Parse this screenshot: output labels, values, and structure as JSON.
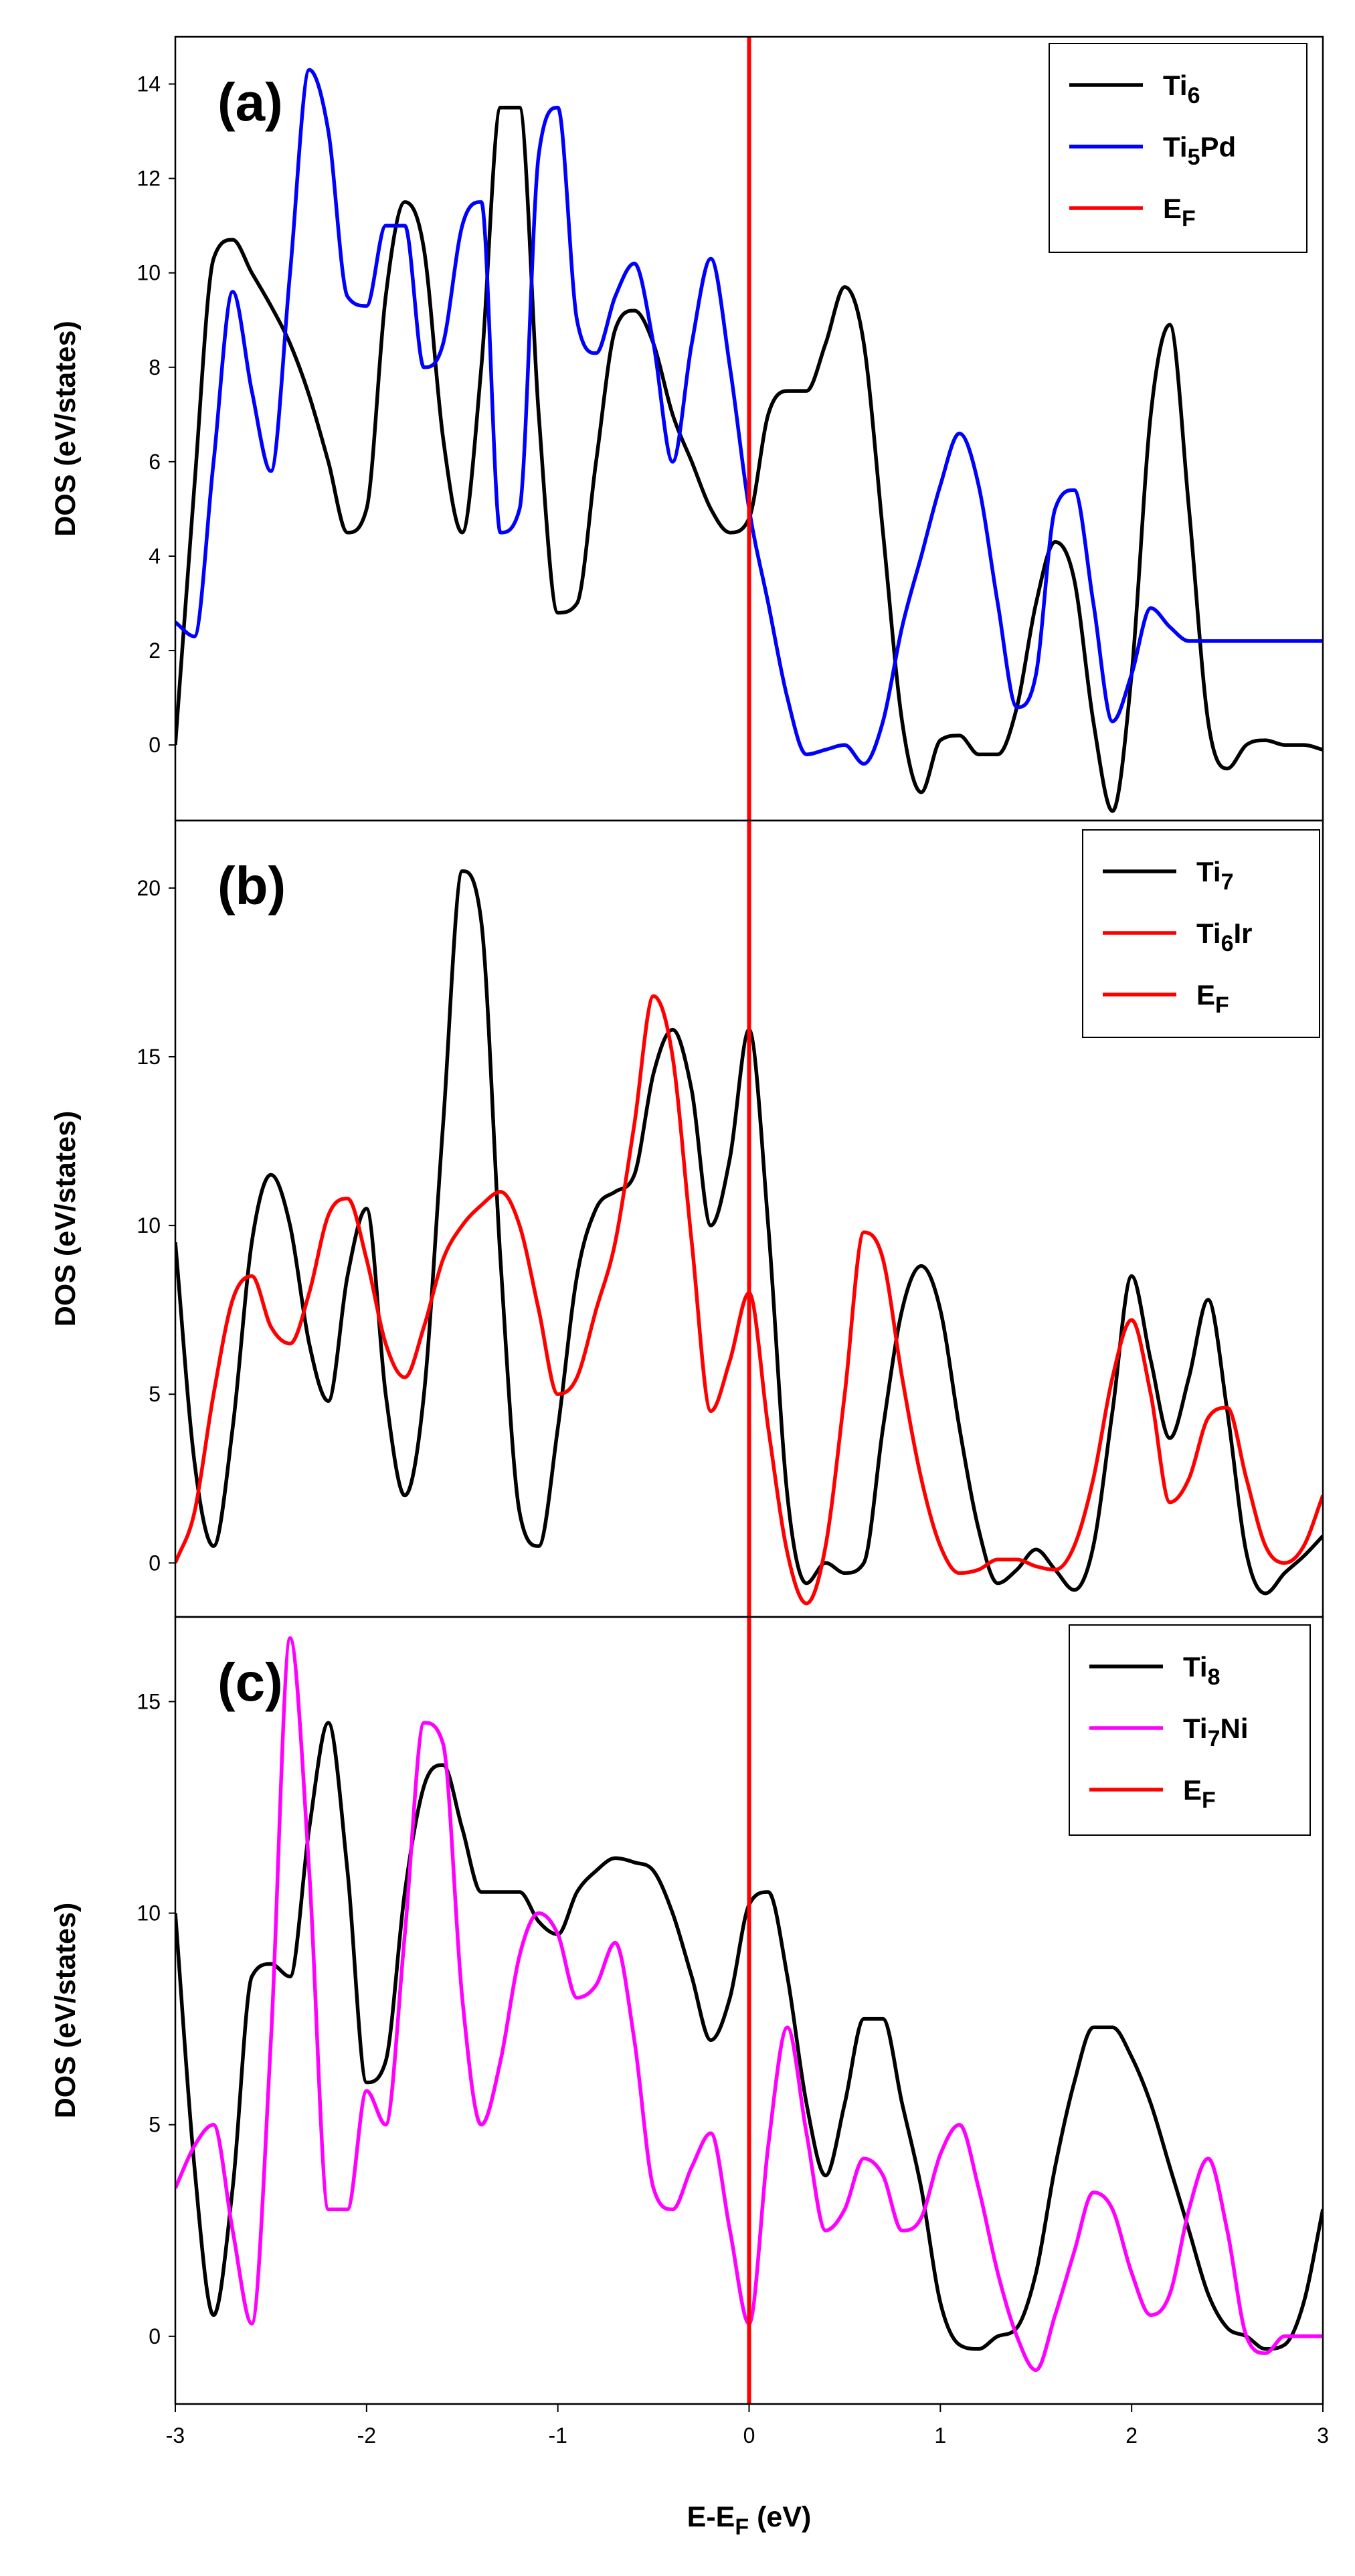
{
  "chart_data": [
    {
      "type": "line",
      "panel_label": "(a)",
      "ylabel": "DOS (eV/states)",
      "xlabel": "E-EF (eV)",
      "xlim": [
        -3,
        3
      ],
      "ylim": [
        -1.6,
        15
      ],
      "yticks": [
        0,
        2,
        4,
        6,
        8,
        10,
        12,
        14
      ],
      "fermi_level": 0,
      "legend_position": "top-right",
      "legend": [
        {
          "base": "Ti",
          "sub": "6",
          "rest": "",
          "color": "#000000"
        },
        {
          "base": "Ti",
          "sub": "5",
          "rest": "Pd",
          "color": "#0000ff"
        },
        {
          "base": "E",
          "sub": "F",
          "rest": "",
          "color": "#ff0000"
        }
      ],
      "series": [
        {
          "name": "Ti6",
          "color": "#000000",
          "x": [
            -3.0,
            -2.9,
            -2.8,
            -2.7,
            -2.6,
            -2.5,
            -2.4,
            -2.3,
            -2.2,
            -2.1,
            -2.0,
            -1.9,
            -1.8,
            -1.7,
            -1.6,
            -1.5,
            -1.4,
            -1.3,
            -1.2,
            -1.1,
            -1.0,
            -0.9,
            -0.8,
            -0.7,
            -0.6,
            -0.5,
            -0.4,
            -0.3,
            -0.2,
            -0.1,
            0.0,
            0.1,
            0.2,
            0.3,
            0.4,
            0.5,
            0.6,
            0.7,
            0.8,
            0.9,
            1.0,
            1.1,
            1.2,
            1.3,
            1.4,
            1.5,
            1.6,
            1.7,
            1.8,
            1.9,
            2.0,
            2.1,
            2.2,
            2.3,
            2.4,
            2.5,
            2.6,
            2.7,
            2.8,
            2.9,
            3.0
          ],
          "y": [
            0.0,
            5.5,
            10.3,
            10.7,
            10.0,
            9.3,
            8.5,
            7.4,
            6.0,
            4.5,
            5.0,
            9.5,
            11.5,
            10.5,
            6.5,
            4.5,
            8.0,
            13.5,
            13.5,
            7.0,
            2.8,
            3.0,
            6.0,
            8.8,
            9.2,
            8.5,
            7.0,
            6.0,
            5.0,
            4.5,
            4.8,
            7.0,
            7.5,
            7.5,
            8.5,
            9.7,
            8.5,
            4.5,
            0.5,
            -1.0,
            0.1,
            0.2,
            -0.2,
            -0.2,
            0.8,
            3.0,
            4.3,
            3.5,
            0.5,
            -1.4,
            1.5,
            7.0,
            8.9,
            5.0,
            0.5,
            -0.5,
            0.0,
            0.1,
            0.0,
            0.0,
            -0.1
          ]
        },
        {
          "name": "Ti5Pd",
          "color": "#0000ff",
          "x": [
            -3.0,
            -2.9,
            -2.8,
            -2.7,
            -2.6,
            -2.5,
            -2.4,
            -2.3,
            -2.2,
            -2.1,
            -2.0,
            -1.9,
            -1.8,
            -1.7,
            -1.6,
            -1.5,
            -1.4,
            -1.3,
            -1.2,
            -1.1,
            -1.0,
            -0.9,
            -0.8,
            -0.7,
            -0.6,
            -0.5,
            -0.4,
            -0.3,
            -0.2,
            -0.1,
            0.0,
            0.1,
            0.2,
            0.3,
            0.4,
            0.5,
            0.6,
            0.7,
            0.8,
            0.9,
            1.0,
            1.1,
            1.2,
            1.3,
            1.4,
            1.5,
            1.6,
            1.7,
            1.8,
            1.9,
            2.0,
            2.1,
            2.2,
            2.3,
            2.4,
            2.5,
            2.6,
            2.7,
            2.8,
            2.9,
            3.0
          ],
          "y": [
            2.6,
            2.3,
            6.0,
            9.6,
            7.5,
            5.8,
            10.0,
            14.3,
            13.0,
            9.5,
            9.3,
            11.0,
            11.0,
            8.0,
            8.5,
            11.0,
            11.5,
            4.5,
            5.0,
            12.5,
            13.5,
            9.0,
            8.3,
            9.5,
            10.2,
            8.5,
            6.0,
            8.5,
            10.3,
            8.0,
            5.0,
            3.0,
            1.0,
            -0.2,
            -0.1,
            0.0,
            -0.4,
            0.5,
            2.5,
            4.0,
            5.5,
            6.6,
            5.5,
            3.0,
            0.8,
            1.5,
            5.0,
            5.4,
            3.0,
            0.5,
            1.5,
            2.9,
            2.5,
            2.2,
            2.2,
            2.2,
            2.2,
            2.2,
            2.2,
            2.2,
            2.2
          ]
        }
      ]
    },
    {
      "type": "line",
      "panel_label": "(b)",
      "ylabel": "DOS (eV/states)",
      "xlim": [
        -3,
        3
      ],
      "ylim": [
        -1.6,
        22
      ],
      "yticks": [
        0,
        5,
        10,
        15,
        20
      ],
      "fermi_level": 0,
      "legend_position": "top-right",
      "legend": [
        {
          "base": "Ti",
          "sub": "7",
          "rest": "",
          "color": "#000000"
        },
        {
          "base": "Ti",
          "sub": "6",
          "rest": "Ir",
          "color": "#ff0000"
        },
        {
          "base": "E",
          "sub": "F",
          "rest": "",
          "color": "#ff0000"
        }
      ],
      "series": [
        {
          "name": "Ti7",
          "color": "#000000",
          "x": [
            -3.0,
            -2.9,
            -2.8,
            -2.7,
            -2.6,
            -2.5,
            -2.4,
            -2.3,
            -2.2,
            -2.1,
            -2.0,
            -1.9,
            -1.8,
            -1.7,
            -1.6,
            -1.5,
            -1.4,
            -1.3,
            -1.2,
            -1.1,
            -1.0,
            -0.9,
            -0.8,
            -0.7,
            -0.6,
            -0.5,
            -0.4,
            -0.3,
            -0.2,
            -0.1,
            0.0,
            0.1,
            0.2,
            0.3,
            0.4,
            0.5,
            0.6,
            0.7,
            0.8,
            0.9,
            1.0,
            1.1,
            1.2,
            1.3,
            1.4,
            1.5,
            1.6,
            1.7,
            1.8,
            1.9,
            2.0,
            2.1,
            2.2,
            2.3,
            2.4,
            2.5,
            2.6,
            2.7,
            2.8,
            2.9,
            3.0
          ],
          "y": [
            9.5,
            3.0,
            0.5,
            4.0,
            9.5,
            11.5,
            10.0,
            6.5,
            4.8,
            8.5,
            10.5,
            5.0,
            2.0,
            5.0,
            13.0,
            20.5,
            19.0,
            9.0,
            1.5,
            0.5,
            4.0,
            8.5,
            10.5,
            11.0,
            11.5,
            14.5,
            15.8,
            14.0,
            10.0,
            12.0,
            15.8,
            10.0,
            2.0,
            -0.6,
            0.0,
            -0.3,
            0.0,
            4.0,
            7.5,
            8.8,
            7.5,
            4.0,
            1.0,
            -0.6,
            -0.2,
            0.4,
            -0.2,
            -0.8,
            0.5,
            4.5,
            8.5,
            6.0,
            3.7,
            5.5,
            7.8,
            4.5,
            0.3,
            -0.9,
            -0.3,
            0.2,
            0.8
          ]
        },
        {
          "name": "Ti6Ir",
          "color": "#ff0000",
          "x": [
            -3.0,
            -2.9,
            -2.8,
            -2.7,
            -2.6,
            -2.5,
            -2.4,
            -2.3,
            -2.2,
            -2.1,
            -2.0,
            -1.9,
            -1.8,
            -1.7,
            -1.6,
            -1.5,
            -1.4,
            -1.3,
            -1.2,
            -1.1,
            -1.0,
            -0.9,
            -0.8,
            -0.7,
            -0.6,
            -0.5,
            -0.4,
            -0.3,
            -0.2,
            -0.1,
            0.0,
            0.1,
            0.2,
            0.3,
            0.4,
            0.5,
            0.6,
            0.7,
            0.8,
            0.9,
            1.0,
            1.1,
            1.2,
            1.3,
            1.4,
            1.5,
            1.6,
            1.7,
            1.8,
            1.9,
            2.0,
            2.1,
            2.2,
            2.3,
            2.4,
            2.5,
            2.6,
            2.7,
            2.8,
            2.9,
            3.0
          ],
          "y": [
            0.0,
            1.5,
            5.0,
            7.8,
            8.5,
            7.0,
            6.5,
            8.0,
            10.3,
            10.8,
            9.0,
            6.5,
            5.5,
            7.0,
            9.0,
            10.0,
            10.6,
            11.0,
            10.0,
            7.5,
            5.0,
            5.5,
            7.5,
            9.5,
            13.0,
            16.8,
            15.0,
            9.5,
            4.5,
            6.0,
            8.0,
            4.0,
            0.3,
            -1.2,
            0.5,
            5.0,
            9.8,
            9.0,
            5.5,
            2.5,
            0.5,
            -0.3,
            -0.2,
            0.1,
            0.1,
            -0.1,
            -0.2,
            0.5,
            2.5,
            5.5,
            7.2,
            5.0,
            1.8,
            2.5,
            4.3,
            4.6,
            2.5,
            0.5,
            0.0,
            0.5,
            2.0
          ]
        }
      ]
    },
    {
      "type": "line",
      "panel_label": "(c)",
      "ylabel": "DOS (eV/states)",
      "xlabel": "E-EF (eV)",
      "xlim": [
        -3,
        3
      ],
      "xticks": [
        -3,
        -2,
        -1,
        0,
        1,
        2,
        3
      ],
      "ylim": [
        -1.6,
        17
      ],
      "yticks": [
        0,
        5,
        10,
        15
      ],
      "fermi_level": 0,
      "legend_position": "top-right",
      "legend": [
        {
          "base": "Ti",
          "sub": "8",
          "rest": "",
          "color": "#000000"
        },
        {
          "base": "Ti",
          "sub": "7",
          "rest": "Ni",
          "color": "#ff00ff"
        },
        {
          "base": "E",
          "sub": "F",
          "rest": "",
          "color": "#ff0000"
        }
      ],
      "series": [
        {
          "name": "Ti8",
          "color": "#000000",
          "x": [
            -3.0,
            -2.9,
            -2.8,
            -2.7,
            -2.6,
            -2.5,
            -2.4,
            -2.3,
            -2.2,
            -2.1,
            -2.0,
            -1.9,
            -1.8,
            -1.7,
            -1.6,
            -1.5,
            -1.4,
            -1.3,
            -1.2,
            -1.1,
            -1.0,
            -0.9,
            -0.8,
            -0.7,
            -0.6,
            -0.5,
            -0.4,
            -0.3,
            -0.2,
            -0.1,
            0.0,
            0.1,
            0.2,
            0.3,
            0.4,
            0.5,
            0.6,
            0.7,
            0.8,
            0.9,
            1.0,
            1.1,
            1.2,
            1.3,
            1.4,
            1.5,
            1.6,
            1.7,
            1.8,
            1.9,
            2.0,
            2.1,
            2.2,
            2.3,
            2.4,
            2.5,
            2.6,
            2.7,
            2.8,
            2.9,
            3.0
          ],
          "y": [
            10.0,
            4.0,
            0.5,
            3.5,
            8.5,
            8.8,
            8.5,
            12.0,
            14.5,
            11.0,
            6.0,
            6.5,
            10.5,
            13.0,
            13.5,
            12.0,
            10.5,
            10.5,
            10.5,
            9.8,
            9.5,
            10.5,
            11.0,
            11.3,
            11.2,
            11.0,
            10.0,
            8.5,
            7.0,
            8.0,
            10.2,
            10.5,
            8.5,
            5.5,
            3.8,
            5.5,
            7.5,
            7.5,
            5.5,
            3.5,
            0.8,
            -0.2,
            -0.3,
            0.0,
            0.2,
            1.5,
            4.0,
            6.0,
            7.3,
            7.3,
            6.6,
            5.5,
            4.0,
            2.5,
            1.0,
            0.2,
            0.0,
            -0.3,
            -0.2,
            0.8,
            3.0
          ]
        },
        {
          "name": "Ti7Ni",
          "color": "#ff00ff",
          "x": [
            -3.0,
            -2.9,
            -2.8,
            -2.7,
            -2.6,
            -2.5,
            -2.4,
            -2.3,
            -2.2,
            -2.1,
            -2.0,
            -1.9,
            -1.8,
            -1.7,
            -1.6,
            -1.5,
            -1.4,
            -1.3,
            -1.2,
            -1.1,
            -1.0,
            -0.9,
            -0.8,
            -0.7,
            -0.6,
            -0.5,
            -0.4,
            -0.3,
            -0.2,
            -0.1,
            0.0,
            0.1,
            0.2,
            0.3,
            0.4,
            0.5,
            0.6,
            0.7,
            0.8,
            0.9,
            1.0,
            1.1,
            1.2,
            1.3,
            1.4,
            1.5,
            1.6,
            1.7,
            1.8,
            1.9,
            2.0,
            2.1,
            2.2,
            2.3,
            2.4,
            2.5,
            2.6,
            2.7,
            2.8,
            2.9,
            3.0
          ],
          "y": [
            3.5,
            4.5,
            5.0,
            2.5,
            0.3,
            7.0,
            16.5,
            11.0,
            3.0,
            3.0,
            5.8,
            5.0,
            9.5,
            14.5,
            14.0,
            8.0,
            5.0,
            6.5,
            9.0,
            10.0,
            9.5,
            8.0,
            8.3,
            9.3,
            7.0,
            3.5,
            3.0,
            4.0,
            4.8,
            2.5,
            0.3,
            4.5,
            7.3,
            4.8,
            2.5,
            3.0,
            4.2,
            3.8,
            2.5,
            2.8,
            4.3,
            5.0,
            3.5,
            1.5,
            0.0,
            -0.8,
            0.5,
            2.0,
            3.4,
            3.0,
            1.5,
            0.5,
            1.0,
            3.0,
            4.2,
            2.5,
            0.0,
            -0.4,
            0.0,
            0.0,
            0.0
          ]
        }
      ]
    }
  ]
}
